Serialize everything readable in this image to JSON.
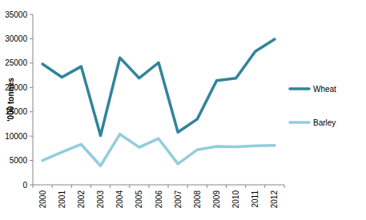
{
  "chart_data": {
    "type": "line",
    "y_label": "'000 tonnes",
    "categories": [
      "2000",
      "2001",
      "2002",
      "2003",
      "2004",
      "2005",
      "2006",
      "2007",
      "2008",
      "2009",
      "2010",
      "2011",
      "2012"
    ],
    "series": [
      {
        "name": "Wheat",
        "color": "#31849b",
        "values": [
          24800,
          22100,
          24300,
          10100,
          26100,
          21900,
          25100,
          10800,
          13500,
          21400,
          21900,
          27400,
          29900
        ]
      },
      {
        "name": "Barley",
        "color": "#93cddd",
        "values": [
          5000,
          6700,
          8300,
          3900,
          10400,
          7700,
          9500,
          4300,
          7200,
          7900,
          7800,
          8000,
          8100
        ]
      }
    ],
    "ylim": [
      0,
      35000
    ],
    "yticks": [
      0,
      5000,
      10000,
      15000,
      20000,
      25000,
      30000,
      35000
    ],
    "grid": false,
    "legend": "right"
  }
}
